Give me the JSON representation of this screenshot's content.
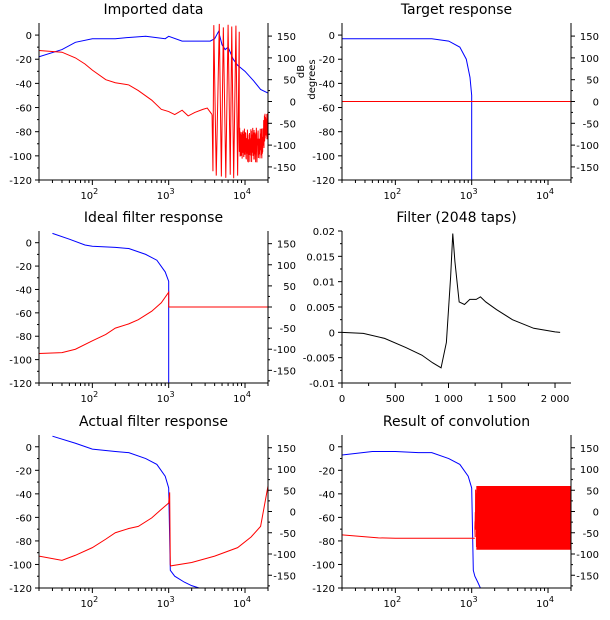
{
  "figure": {
    "background": "#ffffff"
  },
  "colors": {
    "magnitude": "#0000ff",
    "phase": "#ff0000",
    "filter": "#000000"
  },
  "chart_data": [
    {
      "id": "imported",
      "type": "line",
      "title": "Imported data",
      "x_scale": "log",
      "xlim": [
        20,
        20000
      ],
      "xticks": [
        {
          "v": 100,
          "label": "10",
          "exp": "2"
        },
        {
          "v": 1000,
          "label": "10",
          "exp": "3"
        },
        {
          "v": 10000,
          "label": "10",
          "exp": "4"
        }
      ],
      "ylim_left": [
        -120,
        10
      ],
      "yticks_left": [
        0,
        -20,
        -40,
        -60,
        -80,
        -100,
        -120
      ],
      "ylim_right": [
        -180,
        180
      ],
      "yticks_right": [
        150,
        100,
        50,
        0,
        -50,
        -100,
        -150
      ],
      "right_axis_label_1": "dB",
      "right_axis_label_2": "degrees",
      "series": [
        {
          "axis": "left",
          "color": "#0000ff",
          "mode": "points",
          "x": [
            20,
            40,
            60,
            100,
            200,
            300,
            500,
            900,
            1000,
            1500,
            2500,
            3500,
            4000,
            4500,
            5000,
            5500,
            6000,
            7000,
            8000,
            10000,
            13000,
            16000,
            20000
          ],
          "y": [
            -18,
            -12,
            -6,
            -3,
            -3,
            -2,
            -1,
            -3,
            -1,
            -5,
            -5,
            -5,
            -3,
            3,
            -8,
            -12,
            -10,
            -20,
            -25,
            -30,
            -38,
            -45,
            -48
          ]
        },
        {
          "axis": "right",
          "color": "#ff0000",
          "mode": "points",
          "x": [
            20,
            40,
            60,
            80,
            100,
            150,
            200,
            300,
            400,
            600,
            800,
            1000,
            1200,
            1500,
            1800,
            2200,
            2800,
            3200,
            3700
          ],
          "y": [
            117,
            113,
            100,
            86,
            72,
            50,
            43,
            38,
            25,
            3,
            -18,
            -23,
            -30,
            -20,
            -33,
            -25,
            -18,
            -15,
            -30
          ]
        },
        {
          "axis": "right",
          "color": "#ff0000",
          "mode": "noise_red",
          "from": 3700,
          "to": 20000
        }
      ]
    },
    {
      "id": "target",
      "type": "line",
      "title": "Target response",
      "x_scale": "log",
      "xlim": [
        20,
        20000
      ],
      "xticks": [
        {
          "v": 100,
          "label": "10",
          "exp": "2"
        },
        {
          "v": 1000,
          "label": "10",
          "exp": "3"
        },
        {
          "v": 10000,
          "label": "10",
          "exp": "4"
        }
      ],
      "ylim_left": [
        -120,
        10
      ],
      "yticks_left": [
        0,
        -20,
        -40,
        -60,
        -80,
        -100,
        -120
      ],
      "ylim_right": [
        -180,
        180
      ],
      "yticks_right": [
        150,
        100,
        50,
        0,
        -50,
        -100,
        -150
      ],
      "series": [
        {
          "axis": "left",
          "color": "#0000ff",
          "mode": "points",
          "x": [
            20,
            300,
            500,
            700,
            850,
            950,
            1000,
            1000
          ],
          "y": [
            -3,
            -3,
            -5,
            -10,
            -20,
            -35,
            -50,
            -120
          ]
        },
        {
          "axis": "right",
          "color": "#ff0000",
          "mode": "points",
          "x": [
            20,
            20000
          ],
          "y": [
            0,
            0
          ]
        }
      ]
    },
    {
      "id": "ideal",
      "type": "line",
      "title": "Ideal filter response",
      "x_scale": "log",
      "xlim": [
        20,
        20000
      ],
      "xticks": [
        {
          "v": 100,
          "label": "10",
          "exp": "2"
        },
        {
          "v": 1000,
          "label": "10",
          "exp": "3"
        },
        {
          "v": 10000,
          "label": "10",
          "exp": "4"
        }
      ],
      "ylim_left": [
        -120,
        10
      ],
      "yticks_left": [
        0,
        -20,
        -40,
        -60,
        -80,
        -100,
        -120
      ],
      "ylim_right": [
        -180,
        180
      ],
      "yticks_right": [
        150,
        100,
        50,
        0,
        -50,
        -100,
        -150
      ],
      "series": [
        {
          "axis": "left",
          "color": "#0000ff",
          "mode": "points",
          "x": [
            30,
            50,
            80,
            100,
            200,
            300,
            500,
            700,
            900,
            1000,
            1000
          ],
          "y": [
            8,
            3,
            -2,
            -3,
            -4,
            -5,
            -10,
            -15,
            -25,
            -33,
            -120
          ]
        },
        {
          "axis": "right",
          "color": "#ff0000",
          "mode": "points",
          "x": [
            20,
            40,
            60,
            100,
            150,
            200,
            300,
            400,
            600,
            800,
            1000,
            1000,
            20000
          ],
          "y": [
            -110,
            -108,
            -100,
            -80,
            -65,
            -50,
            -40,
            -30,
            -10,
            10,
            35,
            0,
            0
          ]
        }
      ]
    },
    {
      "id": "taps",
      "type": "line",
      "title": "Filter (2048 taps)",
      "x_scale": "linear",
      "xlim": [
        0,
        2150
      ],
      "xticks": [
        {
          "v": 0,
          "label": "0"
        },
        {
          "v": 500,
          "label": "500"
        },
        {
          "v": 1000,
          "label": "1 000"
        },
        {
          "v": 1500,
          "label": "1 500"
        },
        {
          "v": 2000,
          "label": "2 000"
        }
      ],
      "ylim_left": [
        -0.01,
        0.02
      ],
      "yticks_left": [
        0.02,
        0.015,
        0.01,
        0.005,
        0,
        -0.005,
        -0.01
      ],
      "yticks_left_labels": [
        "0.02",
        "0.015",
        "0.01",
        "0.005",
        "0",
        "-0.005",
        "-0.01"
      ],
      "series": [
        {
          "axis": "left",
          "color": "#000000",
          "mode": "points",
          "x": [
            0,
            200,
            400,
            600,
            750,
            850,
            930,
            980,
            1020,
            1040,
            1060,
            1100,
            1150,
            1200,
            1260,
            1300,
            1350,
            1450,
            1600,
            1800,
            2000,
            2048
          ],
          "y": [
            0,
            -0.0002,
            -0.0012,
            -0.003,
            -0.0045,
            -0.006,
            -0.007,
            -0.002,
            0.011,
            0.0195,
            0.014,
            0.006,
            0.0055,
            0.0065,
            0.0065,
            0.007,
            0.006,
            0.0045,
            0.0025,
            0.0008,
            0.0001,
            0
          ]
        }
      ]
    },
    {
      "id": "actual",
      "type": "line",
      "title": "Actual filter response",
      "x_scale": "log",
      "xlim": [
        20,
        20000
      ],
      "xticks": [
        {
          "v": 100,
          "label": "10",
          "exp": "2"
        },
        {
          "v": 1000,
          "label": "10",
          "exp": "3"
        },
        {
          "v": 10000,
          "label": "10",
          "exp": "4"
        }
      ],
      "ylim_left": [
        -120,
        10
      ],
      "yticks_left": [
        0,
        -20,
        -40,
        -60,
        -80,
        -100,
        -120
      ],
      "ylim_right": [
        -180,
        180
      ],
      "yticks_right": [
        150,
        100,
        50,
        0,
        -50,
        -100,
        -150
      ],
      "series": [
        {
          "axis": "left",
          "color": "#0000ff",
          "mode": "points",
          "x": [
            30,
            60,
            100,
            200,
            300,
            500,
            700,
            900,
            1000,
            1050,
            1200,
            1600,
            2000,
            2500
          ],
          "y": [
            9,
            3,
            -2,
            -4,
            -5,
            -10,
            -15,
            -25,
            -35,
            -105,
            -110,
            -115,
            -118,
            -120
          ]
        },
        {
          "axis": "right",
          "color": "#ff0000",
          "mode": "points",
          "x": [
            20,
            40,
            60,
            100,
            150,
            200,
            300,
            400,
            600,
            800,
            1000,
            1030,
            1050,
            1060,
            2000,
            4000,
            8000,
            12000,
            16000,
            20000
          ],
          "y": [
            -105,
            -115,
            -103,
            -85,
            -65,
            -50,
            -40,
            -35,
            -15,
            5,
            20,
            45,
            -125,
            -128,
            -120,
            -105,
            -85,
            -60,
            -35,
            60
          ]
        }
      ]
    },
    {
      "id": "convolution",
      "type": "line",
      "title": "Result of convolution",
      "x_scale": "log",
      "xlim": [
        20,
        20000
      ],
      "xticks": [
        {
          "v": 100,
          "label": "10",
          "exp": "2"
        },
        {
          "v": 1000,
          "label": "10",
          "exp": "3"
        },
        {
          "v": 10000,
          "label": "10",
          "exp": "4"
        }
      ],
      "ylim_left": [
        -120,
        10
      ],
      "yticks_left": [
        0,
        -20,
        -40,
        -60,
        -80,
        -100,
        -120
      ],
      "ylim_right": [
        -180,
        180
      ],
      "yticks_right": [
        150,
        100,
        50,
        0,
        -50,
        -100,
        -150
      ],
      "series": [
        {
          "axis": "left",
          "color": "#0000ff",
          "mode": "points",
          "x": [
            20,
            50,
            100,
            200,
            300,
            500,
            700,
            900,
            1000,
            1050,
            1100,
            1200,
            1300
          ],
          "y": [
            -7,
            -4,
            -4,
            -5,
            -5,
            -10,
            -15,
            -25,
            -35,
            -105,
            -110,
            -115,
            -120
          ]
        },
        {
          "axis": "right",
          "color": "#ff0000",
          "mode": "points",
          "x": [
            20,
            60,
            100,
            300,
            1000,
            1100
          ],
          "y": [
            -55,
            -62,
            -63,
            -63,
            -63,
            -63
          ]
        },
        {
          "axis": "right",
          "color": "#ff0000",
          "mode": "band",
          "from": 1150,
          "to": 20000,
          "low": -90,
          "high": 60
        }
      ]
    }
  ]
}
